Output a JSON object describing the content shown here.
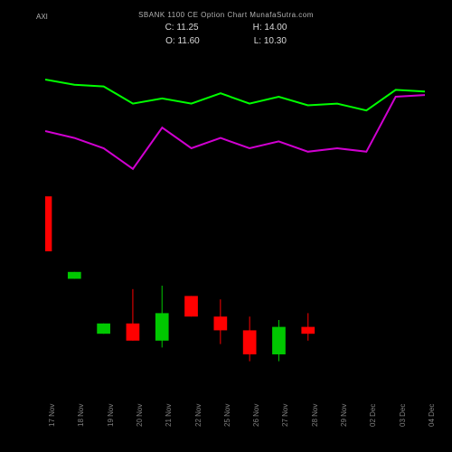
{
  "chart": {
    "left_label": "AXI",
    "title": "SBANK 1100 CE Option Chart MunafaSutra.com",
    "background_color": "#000000",
    "text_color": "#b3b3b3",
    "ohlc": {
      "c": "C: 11.25",
      "h": "H: 14.00",
      "o": "O: 11.60",
      "l": "L: 10.30"
    },
    "ohlc_color": "#d9d9d9",
    "x_labels": [
      "17 Nov",
      "18 Nov",
      "19 Nov",
      "20 Nov",
      "21 Nov",
      "22 Nov",
      "25 Nov",
      "26 Nov",
      "27 Nov",
      "28 Nov",
      "29 Nov",
      "02 Dec",
      "03 Dec",
      "04 Dec"
    ],
    "x_label_color": "#808080",
    "lines": {
      "green": {
        "color": "#00ff00",
        "width": 2,
        "points": [
          {
            "x": 0.0,
            "y": 0.1
          },
          {
            "x": 0.077,
            "y": 0.115
          },
          {
            "x": 0.154,
            "y": 0.12
          },
          {
            "x": 0.231,
            "y": 0.17
          },
          {
            "x": 0.308,
            "y": 0.155
          },
          {
            "x": 0.385,
            "y": 0.17
          },
          {
            "x": 0.462,
            "y": 0.14
          },
          {
            "x": 0.538,
            "y": 0.17
          },
          {
            "x": 0.615,
            "y": 0.15
          },
          {
            "x": 0.692,
            "y": 0.175
          },
          {
            "x": 0.769,
            "y": 0.17
          },
          {
            "x": 0.846,
            "y": 0.19
          },
          {
            "x": 0.923,
            "y": 0.13
          },
          {
            "x": 1.0,
            "y": 0.135
          }
        ]
      },
      "magenta": {
        "color": "#d000d0",
        "width": 2,
        "points": [
          {
            "x": 0.0,
            "y": 0.25
          },
          {
            "x": 0.077,
            "y": 0.27
          },
          {
            "x": 0.154,
            "y": 0.3
          },
          {
            "x": 0.231,
            "y": 0.36
          },
          {
            "x": 0.308,
            "y": 0.24
          },
          {
            "x": 0.385,
            "y": 0.3
          },
          {
            "x": 0.462,
            "y": 0.27
          },
          {
            "x": 0.538,
            "y": 0.3
          },
          {
            "x": 0.615,
            "y": 0.28
          },
          {
            "x": 0.692,
            "y": 0.31
          },
          {
            "x": 0.769,
            "y": 0.3
          },
          {
            "x": 0.846,
            "y": 0.31
          },
          {
            "x": 0.923,
            "y": 0.15
          },
          {
            "x": 1.0,
            "y": 0.145
          }
        ]
      }
    },
    "candles": {
      "up_color": "#00c800",
      "down_color": "#ff0000",
      "wick_color_up": "#00c800",
      "wick_color_down": "#ff0000",
      "body_width": 0.035,
      "data": [
        {
          "i": 0,
          "open": 0.44,
          "close": 0.6,
          "high": 0.44,
          "low": 0.6,
          "dir": "down"
        },
        {
          "i": 1,
          "open": 0.66,
          "close": 0.68,
          "high": 0.66,
          "low": 0.68,
          "dir": "up"
        },
        {
          "i": 2,
          "open": 0.84,
          "close": 0.81,
          "high": 0.81,
          "low": 0.84,
          "dir": "up"
        },
        {
          "i": 3,
          "open": 0.81,
          "close": 0.86,
          "high": 0.71,
          "low": 0.86,
          "dir": "down"
        },
        {
          "i": 4,
          "open": 0.86,
          "close": 0.78,
          "high": 0.7,
          "low": 0.88,
          "dir": "up"
        },
        {
          "i": 5,
          "open": 0.73,
          "close": 0.79,
          "high": 0.73,
          "low": 0.79,
          "dir": "down"
        },
        {
          "i": 6,
          "open": 0.79,
          "close": 0.83,
          "high": 0.74,
          "low": 0.87,
          "dir": "down"
        },
        {
          "i": 7,
          "open": 0.83,
          "close": 0.9,
          "high": 0.79,
          "low": 0.92,
          "dir": "down"
        },
        {
          "i": 8,
          "open": 0.9,
          "close": 0.82,
          "high": 0.8,
          "low": 0.92,
          "dir": "up"
        },
        {
          "i": 9,
          "open": 0.82,
          "close": 0.84,
          "high": 0.78,
          "low": 0.86,
          "dir": "down"
        }
      ]
    }
  }
}
